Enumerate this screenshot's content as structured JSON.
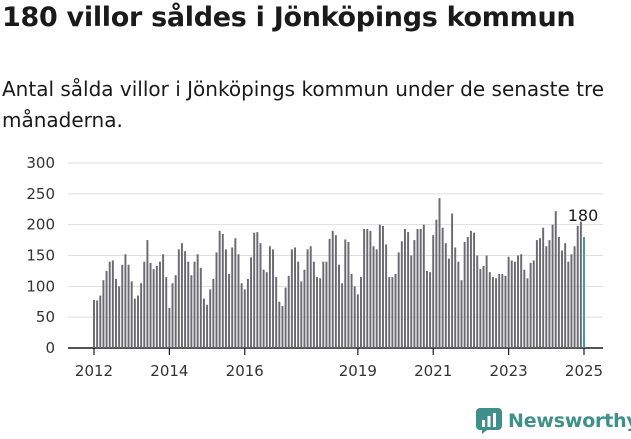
{
  "title": "180 villor såldes i Jönköpings kommun",
  "subtitle": "Antal sålda villor i Jönköpings kommun under de senaste tre månaderna.",
  "brand": {
    "name": "Newsworthy",
    "color": "#3f8f8a",
    "icon": "bar-chart-logo-icon"
  },
  "chart_data": {
    "type": "bar",
    "title": "180 villor såldes i Jönköpings kommun",
    "subtitle": "Antal sålda villor i Jönköpings kommun under de senaste tre månaderna.",
    "ylim": [
      0,
      300
    ],
    "yticks": [
      0,
      50,
      100,
      150,
      200,
      250,
      300
    ],
    "xticks": [
      "2012",
      "2014",
      "2016",
      "2019",
      "2021",
      "2023",
      "2025"
    ],
    "x_start": "2012-01",
    "grid": true,
    "bar_color": "#6b6a70",
    "highlight_color": "#3f9c96",
    "annotation": {
      "label": "180",
      "target": "last"
    },
    "values": [
      78,
      77,
      85,
      110,
      125,
      140,
      142,
      112,
      100,
      135,
      152,
      135,
      108,
      80,
      85,
      105,
      140,
      175,
      138,
      128,
      133,
      140,
      152,
      115,
      65,
      105,
      118,
      160,
      170,
      157,
      140,
      118,
      140,
      152,
      130,
      80,
      70,
      95,
      112,
      155,
      190,
      185,
      160,
      120,
      163,
      178,
      152,
      105,
      95,
      112,
      147,
      187,
      188,
      170,
      127,
      123,
      165,
      160,
      115,
      75,
      68,
      98,
      117,
      160,
      163,
      140,
      108,
      127,
      160,
      165,
      140,
      115,
      113,
      140,
      140,
      177,
      190,
      183,
      135,
      105,
      176,
      172,
      120,
      100,
      87,
      115,
      193,
      193,
      190,
      165,
      160,
      200,
      198,
      168,
      115,
      115,
      120,
      155,
      173,
      193,
      188,
      150,
      175,
      193,
      193,
      200,
      125,
      123,
      183,
      208,
      243,
      195,
      170,
      145,
      218,
      163,
      140,
      110,
      172,
      180,
      190,
      187,
      150,
      128,
      133,
      150,
      123,
      115,
      113,
      120,
      120,
      117,
      148,
      142,
      140,
      150,
      152,
      127,
      113,
      138,
      142,
      175,
      178,
      195,
      165,
      175,
      200,
      222,
      180,
      158,
      170,
      140,
      152,
      165,
      198,
      205,
      180
    ]
  }
}
